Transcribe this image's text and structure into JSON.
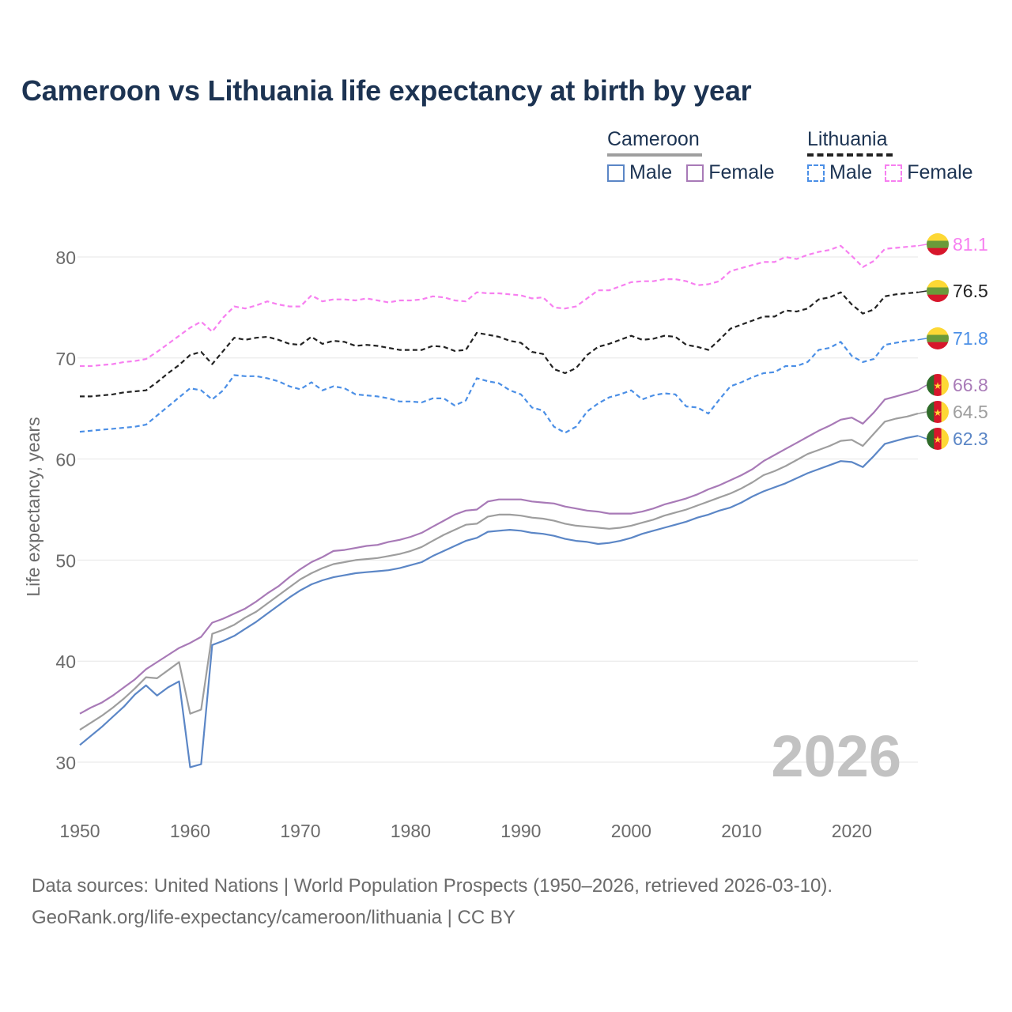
{
  "chart_data": {
    "type": "line",
    "title": "Cameroon vs Lithuania life expectancy at birth by year",
    "ylabel": "Life expectancy, years",
    "xlabel": "",
    "xlim": [
      1950,
      2026
    ],
    "ylim": [
      25,
      85
    ],
    "xticks": [
      1950,
      1960,
      1970,
      1980,
      1990,
      2000,
      2010,
      2020
    ],
    "yticks": [
      30,
      40,
      50,
      60,
      70,
      80
    ],
    "year_label": "2026",
    "legend": {
      "groups": [
        {
          "name": "Cameroon",
          "items": [
            "Male",
            "Female"
          ]
        },
        {
          "name": "Lithuania",
          "items": [
            "Male",
            "Female"
          ]
        }
      ]
    },
    "x": [
      1950,
      1951,
      1952,
      1953,
      1954,
      1955,
      1956,
      1957,
      1958,
      1959,
      1960,
      1961,
      1962,
      1963,
      1964,
      1965,
      1966,
      1967,
      1968,
      1969,
      1970,
      1971,
      1972,
      1973,
      1974,
      1975,
      1976,
      1977,
      1978,
      1979,
      1980,
      1981,
      1982,
      1983,
      1984,
      1985,
      1986,
      1987,
      1988,
      1989,
      1990,
      1991,
      1992,
      1993,
      1994,
      1995,
      1996,
      1997,
      1998,
      1999,
      2000,
      2001,
      2002,
      2003,
      2004,
      2005,
      2006,
      2007,
      2008,
      2009,
      2010,
      2011,
      2012,
      2013,
      2014,
      2015,
      2016,
      2017,
      2018,
      2019,
      2020,
      2021,
      2022,
      2023,
      2024,
      2025,
      2026
    ],
    "series": [
      {
        "name": "Lithuania Female",
        "country": "Lithuania",
        "sex": "Female",
        "color": "#f77ff0",
        "dash": true,
        "end_label": "81.1",
        "values": [
          69.2,
          69.2,
          69.3,
          69.4,
          69.6,
          69.7,
          69.9,
          70.6,
          71.4,
          72.2,
          73.0,
          73.6,
          72.6,
          74.0,
          75.1,
          74.9,
          75.2,
          75.6,
          75.3,
          75.1,
          75.1,
          76.2,
          75.6,
          75.8,
          75.8,
          75.7,
          75.9,
          75.7,
          75.5,
          75.7,
          75.7,
          75.8,
          76.1,
          76.0,
          75.7,
          75.6,
          76.5,
          76.4,
          76.4,
          76.3,
          76.2,
          75.9,
          76.0,
          75.0,
          74.9,
          75.1,
          75.9,
          76.7,
          76.7,
          77.1,
          77.5,
          77.6,
          77.6,
          77.8,
          77.8,
          77.6,
          77.2,
          77.3,
          77.6,
          78.6,
          78.9,
          79.2,
          79.5,
          79.5,
          80.0,
          79.8,
          80.2,
          80.5,
          80.7,
          81.1,
          80.1,
          79.0,
          79.6,
          80.8,
          80.9,
          81.0,
          81.1
        ]
      },
      {
        "name": "Lithuania Total",
        "country": "Lithuania",
        "sex": "Total",
        "color": "#222222",
        "dash": true,
        "end_label": "76.5",
        "values": [
          66.2,
          66.2,
          66.3,
          66.4,
          66.6,
          66.7,
          66.8,
          67.6,
          68.5,
          69.3,
          70.3,
          70.6,
          69.4,
          70.7,
          72.0,
          71.8,
          72.0,
          72.1,
          71.8,
          71.4,
          71.3,
          72.1,
          71.4,
          71.7,
          71.6,
          71.2,
          71.3,
          71.2,
          71.0,
          70.8,
          70.8,
          70.8,
          71.2,
          71.1,
          70.7,
          70.8,
          72.5,
          72.3,
          72.1,
          71.7,
          71.5,
          70.6,
          70.4,
          68.9,
          68.5,
          69.0,
          70.3,
          71.1,
          71.4,
          71.8,
          72.2,
          71.8,
          71.9,
          72.2,
          72.1,
          71.3,
          71.1,
          70.8,
          71.8,
          72.9,
          73.3,
          73.7,
          74.1,
          74.1,
          74.7,
          74.6,
          74.9,
          75.8,
          76.0,
          76.5,
          75.3,
          74.4,
          74.8,
          76.1,
          76.3,
          76.4,
          76.5
        ]
      },
      {
        "name": "Lithuania Male",
        "country": "Lithuania",
        "sex": "Male",
        "color": "#4b8fe6",
        "dash": true,
        "end_label": "71.8",
        "values": [
          62.7,
          62.8,
          62.9,
          63.0,
          63.1,
          63.2,
          63.4,
          64.3,
          65.2,
          66.1,
          67.0,
          66.8,
          65.9,
          66.8,
          68.3,
          68.2,
          68.2,
          68.0,
          67.7,
          67.2,
          66.9,
          67.6,
          66.8,
          67.2,
          67.0,
          66.4,
          66.3,
          66.2,
          66.0,
          65.7,
          65.7,
          65.6,
          66.0,
          66.0,
          65.3,
          65.8,
          68.0,
          67.7,
          67.5,
          66.8,
          66.4,
          65.1,
          64.8,
          63.2,
          62.6,
          63.2,
          64.7,
          65.5,
          66.1,
          66.4,
          66.8,
          65.9,
          66.3,
          66.5,
          66.4,
          65.2,
          65.1,
          64.5,
          65.9,
          67.2,
          67.6,
          68.1,
          68.5,
          68.6,
          69.2,
          69.2,
          69.6,
          70.8,
          71.0,
          71.6,
          70.2,
          69.6,
          69.9,
          71.3,
          71.5,
          71.7,
          71.8
        ]
      },
      {
        "name": "Cameroon Female",
        "country": "Cameroon",
        "sex": "Female",
        "color": "#a87ab7",
        "dash": false,
        "end_label": "66.8",
        "values": [
          34.8,
          35.4,
          35.9,
          36.6,
          37.4,
          38.2,
          39.2,
          39.9,
          40.6,
          41.3,
          41.8,
          42.4,
          43.8,
          44.2,
          44.7,
          45.2,
          45.9,
          46.7,
          47.4,
          48.3,
          49.1,
          49.8,
          50.3,
          50.9,
          51.0,
          51.2,
          51.4,
          51.5,
          51.8,
          52.0,
          52.3,
          52.7,
          53.3,
          53.9,
          54.5,
          54.9,
          55.0,
          55.8,
          56.0,
          56.0,
          56.0,
          55.8,
          55.7,
          55.6,
          55.3,
          55.1,
          54.9,
          54.8,
          54.6,
          54.6,
          54.6,
          54.8,
          55.1,
          55.5,
          55.8,
          56.1,
          56.5,
          57.0,
          57.4,
          57.9,
          58.4,
          59.0,
          59.8,
          60.4,
          61.0,
          61.6,
          62.2,
          62.8,
          63.3,
          63.9,
          64.1,
          63.5,
          64.6,
          65.9,
          66.2,
          66.5,
          66.8
        ]
      },
      {
        "name": "Cameroon Total",
        "country": "Cameroon",
        "sex": "Total",
        "color": "#9e9e9e",
        "dash": false,
        "end_label": "64.5",
        "values": [
          33.2,
          33.9,
          34.6,
          35.4,
          36.3,
          37.3,
          38.4,
          38.3,
          39.1,
          39.9,
          34.8,
          35.2,
          42.7,
          43.1,
          43.6,
          44.3,
          44.9,
          45.7,
          46.5,
          47.3,
          48.1,
          48.7,
          49.2,
          49.6,
          49.8,
          50.0,
          50.1,
          50.2,
          50.4,
          50.6,
          50.9,
          51.3,
          51.9,
          52.5,
          53.0,
          53.5,
          53.6,
          54.3,
          54.5,
          54.5,
          54.4,
          54.2,
          54.1,
          53.9,
          53.6,
          53.4,
          53.3,
          53.2,
          53.1,
          53.2,
          53.4,
          53.7,
          54.0,
          54.4,
          54.7,
          55.0,
          55.4,
          55.8,
          56.2,
          56.6,
          57.1,
          57.7,
          58.4,
          58.8,
          59.3,
          59.9,
          60.5,
          60.9,
          61.3,
          61.8,
          61.9,
          61.3,
          62.5,
          63.7,
          64.0,
          64.2,
          64.5
        ]
      },
      {
        "name": "Cameroon Male",
        "country": "Cameroon",
        "sex": "Male",
        "color": "#5b86c6",
        "dash": false,
        "end_label": "62.3",
        "values": [
          31.7,
          32.6,
          33.5,
          34.5,
          35.5,
          36.7,
          37.6,
          36.6,
          37.4,
          38.0,
          29.5,
          29.8,
          41.6,
          42.0,
          42.5,
          43.2,
          43.9,
          44.7,
          45.5,
          46.3,
          47.0,
          47.6,
          48.0,
          48.3,
          48.5,
          48.7,
          48.8,
          48.9,
          49.0,
          49.2,
          49.5,
          49.8,
          50.4,
          50.9,
          51.4,
          51.9,
          52.2,
          52.8,
          52.9,
          53.0,
          52.9,
          52.7,
          52.6,
          52.4,
          52.1,
          51.9,
          51.8,
          51.6,
          51.7,
          51.9,
          52.2,
          52.6,
          52.9,
          53.2,
          53.5,
          53.8,
          54.2,
          54.5,
          54.9,
          55.2,
          55.7,
          56.3,
          56.8,
          57.2,
          57.6,
          58.1,
          58.6,
          59.0,
          59.4,
          59.8,
          59.7,
          59.2,
          60.3,
          61.5,
          61.8,
          62.1,
          62.3
        ]
      }
    ]
  },
  "footer": {
    "line1": "Data sources: United Nations | World Population Prospects (1950–2026, retrieved 2026-03-10).",
    "line2": "GeoRank.org/life-expectancy/cameroon/lithuania | CC BY"
  }
}
